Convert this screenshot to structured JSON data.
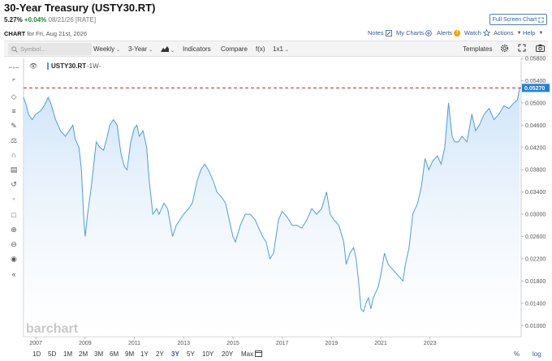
{
  "header": {
    "title": "30-Year Treasury (USTY30.RT)",
    "price": "5.27%",
    "change": "+0.04%",
    "meta": "08/21/26 [RATE]",
    "fullscreen_label": "Full Screen Chart"
  },
  "chart_line": {
    "label": "CHART",
    "date_text": "for Fri, Aug 21st, 2026"
  },
  "top_links": {
    "notes": "Notes",
    "mycharts": "My Charts",
    "alerts": "Alerts",
    "alert_badge": "!",
    "watch": "Watch",
    "actions": "Actions",
    "help": "Help"
  },
  "toolbar": {
    "symbol_placeholder": "Symbol...",
    "interval": "Weekly",
    "range": "3-Year",
    "indicators": "Indicators",
    "compare": "Compare",
    "fx": "f(x)",
    "layout": "1x1",
    "templates": "Templates"
  },
  "legend": {
    "symbol": "USTY30.RT",
    "interval": "-1W-"
  },
  "watermark": "barchart",
  "timeframes": [
    "1D",
    "5D",
    "1M",
    "2M",
    "3M",
    "6M",
    "9M",
    "1Y",
    "2Y",
    "3Y",
    "5Y",
    "10Y",
    "20Y",
    "Max"
  ],
  "active_timeframe": "3Y",
  "scale_options": {
    "percent": "%",
    "log": "log"
  },
  "colors": {
    "line": "#4a9ee0",
    "fill_top": "#cfe4f8",
    "ref_line": "#d0202a",
    "price_tag": "#1f7fe0",
    "active_tf": "#1f5fbf"
  },
  "chart_data": {
    "type": "area",
    "title": "30-Year Treasury (USTY30.RT)",
    "series": [
      {
        "name": "USTY30.RT",
        "x": [
          2006.5,
          2006.6,
          2006.7,
          2006.85,
          2007.0,
          2007.2,
          2007.35,
          2007.5,
          2007.6,
          2007.8,
          2008.0,
          2008.2,
          2008.35,
          2008.5,
          2008.6,
          2008.75,
          2008.85,
          2008.95,
          2009.0,
          2009.1,
          2009.25,
          2009.45,
          2009.6,
          2009.75,
          2009.9,
          2010.0,
          2010.15,
          2010.3,
          2010.45,
          2010.6,
          2010.7,
          2010.85,
          2011.0,
          2011.1,
          2011.2,
          2011.35,
          2011.5,
          2011.6,
          2011.75,
          2011.9,
          2012.0,
          2012.2,
          2012.35,
          2012.55,
          2012.7,
          2012.85,
          2013.0,
          2013.2,
          2013.35,
          2013.55,
          2013.7,
          2013.85,
          2014.0,
          2014.2,
          2014.35,
          2014.55,
          2014.7,
          2014.85,
          2015.0,
          2015.1,
          2015.3,
          2015.5,
          2015.7,
          2015.9,
          2016.0,
          2016.2,
          2016.35,
          2016.5,
          2016.65,
          2016.85,
          2017.0,
          2017.2,
          2017.4,
          2017.6,
          2017.8,
          2018.0,
          2018.2,
          2018.4,
          2018.6,
          2018.8,
          2018.95,
          2019.1,
          2019.3,
          2019.5,
          2019.6,
          2019.75,
          2019.9,
          2020.0,
          2020.1,
          2020.2,
          2020.3,
          2020.4,
          2020.5,
          2020.6,
          2020.7,
          2020.8,
          2020.9,
          2021.0,
          2021.15,
          2021.3,
          2021.5,
          2021.7,
          2021.9,
          2022.0,
          2022.15,
          2022.3,
          2022.5,
          2022.65,
          2022.8,
          2022.95,
          2023.1,
          2023.3,
          2023.45,
          2023.6,
          2023.75,
          2023.8,
          2023.9,
          2024.0,
          2024.15,
          2024.3,
          2024.5,
          2024.7,
          2024.85,
          2025.0,
          2025.2,
          2025.4,
          2025.6,
          2025.8,
          2026.0,
          2026.2,
          2026.4,
          2026.55,
          2026.64
        ],
        "values": [
          0.051,
          0.0498,
          0.048,
          0.047,
          0.048,
          0.0486,
          0.0496,
          0.051,
          0.05,
          0.047,
          0.045,
          0.044,
          0.045,
          0.046,
          0.0435,
          0.042,
          0.038,
          0.029,
          0.026,
          0.03,
          0.035,
          0.043,
          0.042,
          0.0415,
          0.044,
          0.046,
          0.047,
          0.046,
          0.041,
          0.0385,
          0.038,
          0.043,
          0.0455,
          0.046,
          0.044,
          0.045,
          0.042,
          0.036,
          0.03,
          0.031,
          0.03,
          0.032,
          0.031,
          0.026,
          0.028,
          0.029,
          0.03,
          0.031,
          0.032,
          0.036,
          0.038,
          0.039,
          0.038,
          0.036,
          0.034,
          0.033,
          0.032,
          0.029,
          0.026,
          0.025,
          0.028,
          0.03,
          0.03,
          0.029,
          0.028,
          0.026,
          0.025,
          0.022,
          0.023,
          0.029,
          0.0305,
          0.0295,
          0.028,
          0.028,
          0.0275,
          0.029,
          0.031,
          0.03,
          0.031,
          0.034,
          0.03,
          0.029,
          0.028,
          0.025,
          0.021,
          0.023,
          0.024,
          0.022,
          0.018,
          0.013,
          0.0125,
          0.014,
          0.015,
          0.013,
          0.015,
          0.016,
          0.017,
          0.019,
          0.023,
          0.021,
          0.02,
          0.019,
          0.018,
          0.021,
          0.024,
          0.03,
          0.032,
          0.035,
          0.04,
          0.038,
          0.0395,
          0.0405,
          0.039,
          0.042,
          0.05,
          0.048,
          0.044,
          0.043,
          0.043,
          0.044,
          0.043,
          0.048,
          0.045,
          0.046,
          0.048,
          0.049,
          0.047,
          0.048,
          0.0495,
          0.049,
          0.05,
          0.0505,
          0.0527
        ]
      }
    ],
    "xlim": [
      2006.5,
      2026.7
    ],
    "ylim": [
      0.008,
      0.058
    ],
    "x_ticks": [
      "2007",
      "2009",
      "2011",
      "2013",
      "2015",
      "2017",
      "2019",
      "2021",
      "2023"
    ],
    "y_ticks": [
      "0.05800",
      "0.05400",
      "0.05000",
      "0.04600",
      "0.04200",
      "0.03800",
      "0.03400",
      "0.03000",
      "0.02600",
      "0.02200",
      "0.01800",
      "0.01400",
      "0.01000"
    ],
    "last_value": "0.05270",
    "reference_value": 0.0527,
    "grid": false,
    "legend_position": "top-left"
  }
}
